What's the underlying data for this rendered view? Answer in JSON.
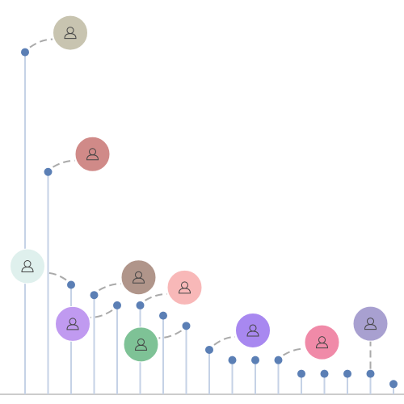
{
  "chart_data": {
    "type": "lollipop",
    "values": [
      100,
      65,
      32,
      29,
      26,
      26,
      23,
      20,
      13,
      10,
      10,
      10,
      6,
      6,
      6,
      6,
      3
    ],
    "ylim": [
      0,
      111
    ],
    "color": "#5b7fb5",
    "stem_color": "#c5d2e6",
    "avatar_colors": [
      "#c8c4b0",
      "#d08a88",
      "#dff0ed",
      "#b0958a",
      "#c09af0",
      "#f8b8b8",
      null,
      "#7ec296",
      "#a888f0",
      null,
      null,
      "#f08aa8",
      null,
      null,
      null,
      "#a8a0d0",
      null
    ]
  }
}
